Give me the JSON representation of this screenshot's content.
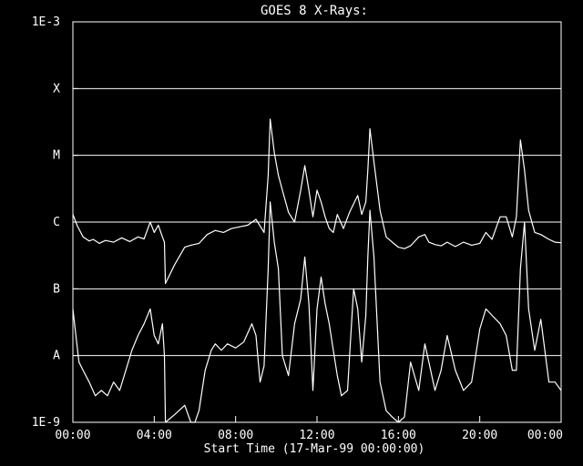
{
  "chart_data": {
    "type": "line",
    "title": "GOES 8 X-Rays:",
    "xlabel": "Start Time (17-Mar-99 00:00:00)",
    "ylabel": "",
    "y_scale": "log",
    "ylim": [
      "1E-9",
      "1E-3"
    ],
    "y_ticks": [
      {
        "label": "1E-3",
        "value": 0.001
      },
      {
        "label": "X",
        "value": 0.0001
      },
      {
        "label": "M",
        "value": 1e-05
      },
      {
        "label": "C",
        "value": 1e-06
      },
      {
        "label": "B",
        "value": 1e-07
      },
      {
        "label": "A",
        "value": 1e-08
      },
      {
        "label": "1E-9",
        "value": 1e-09
      }
    ],
    "grid": "horizontal at X, M, C, B, A",
    "x_ticks": [
      "00:00",
      "04:00",
      "08:00",
      "12:00",
      "16:00",
      "20:00",
      "00:00"
    ],
    "xlim_hours": [
      0,
      24
    ],
    "series": [
      {
        "x": [
          0,
          0.2,
          0.5,
          0.8,
          1.0,
          1.3,
          1.6,
          2.0,
          2.4,
          2.8,
          3.2,
          3.5,
          3.8,
          4.0,
          4.2,
          4.4,
          4.5,
          4.55,
          5.0,
          5.5,
          5.8,
          6.2,
          6.6,
          7.0,
          7.4,
          7.8,
          8.2,
          8.6,
          9.0,
          9.4,
          9.6,
          9.7,
          9.9,
          10.1,
          10.3,
          10.6,
          10.9,
          11.2,
          11.4,
          11.6,
          11.8,
          12.0,
          12.2,
          12.4,
          12.6,
          12.8,
          13.0,
          13.3,
          13.6,
          14.0,
          14.2,
          14.4,
          14.5,
          14.6,
          14.8,
          15.1,
          15.4,
          15.7,
          16.0,
          16.3,
          16.6,
          17.0,
          17.3,
          17.5,
          17.8,
          18.1,
          18.4,
          18.8,
          19.2,
          19.6,
          20.0,
          20.3,
          20.6,
          21.0,
          21.3,
          21.6,
          21.8,
          22.0,
          22.2,
          22.4,
          22.7,
          23.0,
          23.4,
          23.7,
          24.0
        ],
        "y": [
          1.3e-06,
          9e-07,
          6e-07,
          5.2e-07,
          5.5e-07,
          4.8e-07,
          5.3e-07,
          5e-07,
          5.8e-07,
          5.1e-07,
          6e-07,
          5.6e-07,
          1e-06,
          7e-07,
          9e-07,
          6e-07,
          5e-07,
          1.2e-07,
          2.3e-07,
          4.2e-07,
          4.5e-07,
          4.8e-07,
          6.5e-07,
          7.5e-07,
          7e-07,
          8e-07,
          8.5e-07,
          9e-07,
          1.1e-06,
          7e-07,
          5e-06,
          3.5e-05,
          1.1e-05,
          5e-06,
          3e-06,
          1.4e-06,
          1e-06,
          3e-06,
          7e-06,
          3e-06,
          1.2e-06,
          3e-06,
          2e-06,
          1.2e-06,
          8e-07,
          7e-07,
          1.3e-06,
          8e-07,
          1.4e-06,
          2.5e-06,
          1.3e-06,
          2e-06,
          6e-06,
          2.5e-05,
          8e-06,
          1.5e-06,
          6e-07,
          5e-07,
          4.2e-07,
          4e-07,
          4.4e-07,
          6e-07,
          6.5e-07,
          5e-07,
          4.6e-07,
          4.4e-07,
          5e-07,
          4.3e-07,
          5e-07,
          4.5e-07,
          4.8e-07,
          7e-07,
          5.5e-07,
          1.2e-06,
          1.2e-06,
          6e-07,
          1.2e-06,
          1.7e-05,
          6e-06,
          1.5e-06,
          7e-07,
          6.5e-07,
          5.5e-07,
          5e-07,
          4.9e-07
        ]
      },
      {
        "x": [
          0,
          0.15,
          0.3,
          0.5,
          0.8,
          1.1,
          1.4,
          1.7,
          2.0,
          2.3,
          2.6,
          2.9,
          3.2,
          3.5,
          3.8,
          4.0,
          4.2,
          4.4,
          4.5,
          4.55,
          5.0,
          5.5,
          5.8,
          6.0,
          6.2,
          6.5,
          6.8,
          7.0,
          7.3,
          7.6,
          8.0,
          8.4,
          8.8,
          9.0,
          9.2,
          9.4,
          9.6,
          9.7,
          9.9,
          10.1,
          10.3,
          10.6,
          10.9,
          11.2,
          11.4,
          11.6,
          11.8,
          12.0,
          12.2,
          12.4,
          12.6,
          12.8,
          13.0,
          13.2,
          13.5,
          13.8,
          14.0,
          14.2,
          14.4,
          14.5,
          14.6,
          14.8,
          15.1,
          15.4,
          15.7,
          16.0,
          16.3,
          16.6,
          17.0,
          17.3,
          17.5,
          17.8,
          18.1,
          18.4,
          18.8,
          19.2,
          19.6,
          20.0,
          20.3,
          20.6,
          21.0,
          21.3,
          21.6,
          21.8,
          22.0,
          22.2,
          22.4,
          22.7,
          23.0,
          23.4,
          23.7,
          24.0
        ],
        "y": [
          5e-08,
          2e-08,
          8e-09,
          6e-09,
          4e-09,
          2.5e-09,
          3e-09,
          2.5e-09,
          4e-09,
          3e-09,
          6e-09,
          1.2e-08,
          2e-08,
          3e-08,
          5e-08,
          2e-08,
          1.5e-08,
          3e-08,
          1e-08,
          1e-09,
          1.3e-09,
          1.8e-09,
          1e-09,
          1e-09,
          1.5e-09,
          6e-09,
          1.2e-08,
          1.5e-08,
          1.2e-08,
          1.5e-08,
          1.3e-08,
          1.6e-08,
          3e-08,
          2e-08,
          4e-09,
          7e-09,
          2e-07,
          2e-06,
          5e-07,
          2e-07,
          1e-08,
          5e-09,
          3e-08,
          7e-08,
          3e-07,
          6e-08,
          3e-09,
          5e-08,
          1.5e-07,
          6e-08,
          3e-08,
          1.2e-08,
          5e-09,
          2.5e-09,
          3e-09,
          1e-07,
          5e-08,
          8e-09,
          4e-08,
          3e-07,
          1.5e-06,
          3e-07,
          4e-09,
          1.5e-09,
          1.2e-09,
          1e-09,
          1.2e-09,
          8e-09,
          3e-09,
          1.5e-08,
          8e-09,
          3e-09,
          6e-09,
          2e-08,
          6e-09,
          3e-09,
          4e-09,
          2.5e-08,
          5e-08,
          4e-08,
          3e-08,
          2e-08,
          6e-09,
          6e-09,
          2e-07,
          1e-06,
          5e-08,
          1.2e-08,
          3.5e-08,
          4e-09,
          4e-09,
          3e-09
        ]
      }
    ]
  }
}
